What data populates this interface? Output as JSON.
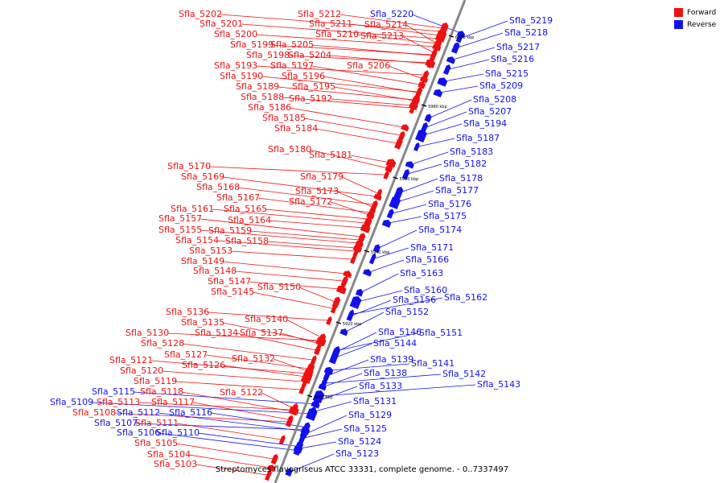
{
  "legend": {
    "forward": {
      "label": "Forward",
      "color": "#ee1111"
    },
    "reverse": {
      "label": "Reverse",
      "color": "#1111ee"
    }
  },
  "caption": "Streptomyces flavogriseus ATCC 33331, complete genome. - 0..7337497",
  "ticks": [
    "6000 kbp",
    "5980 kbp",
    "5960 kbp",
    "5940 kbp",
    "5920 kbp",
    "5900 kbp"
  ],
  "forward_genes": [
    "Sfla_5202",
    "Sfla_5201",
    "Sfla_5200",
    "Sfla_5199",
    "Sfla_5198",
    "Sfla_5193",
    "Sfla_5190",
    "Sfla_5189",
    "Sfla_5188",
    "Sfla_5186",
    "Sfla_5185",
    "Sfla_5184",
    "Sfla_5212",
    "Sfla_5211",
    "Sfla_5210",
    "Sfla_5214",
    "Sfla_5213",
    "Sfla_5205",
    "Sfla_5204",
    "Sfla_5206",
    "Sfla_5197",
    "Sfla_5196",
    "Sfla_5195",
    "Sfla_5192",
    "Sfla_5180",
    "Sfla_5181",
    "Sfla_5179",
    "Sfla_5173",
    "Sfla_5172",
    "Sfla_5170",
    "Sfla_5169",
    "Sfla_5168",
    "Sfla_5167",
    "Sfla_5161",
    "Sfla_5165",
    "Sfla_5157",
    "Sfla_5164",
    "Sfla_5155",
    "Sfla_5159",
    "Sfla_5154",
    "Sfla_5158",
    "Sfla_5153",
    "Sfla_5149",
    "Sfla_5148",
    "Sfla_5147",
    "Sfla_5145",
    "Sfla_5150",
    "Sfla_5136",
    "Sfla_5140",
    "Sfla_5135",
    "Sfla_5134",
    "Sfla_5137",
    "Sfla_5130",
    "Sfla_5128",
    "Sfla_5127",
    "Sfla_5126",
    "Sfla_5132",
    "Sfla_5121",
    "Sfla_5120",
    "Sfla_5119",
    "Sfla_5118",
    "Sfla_5122",
    "Sfla_5113",
    "Sfla_5117",
    "Sfla_5108",
    "Sfla_5111",
    "Sfla_5105",
    "Sfla_5104",
    "Sfla_5103"
  ],
  "reverse_genes": [
    "Sfla_5220",
    "Sfla_5219",
    "Sfla_5218",
    "Sfla_5217",
    "Sfla_5216",
    "Sfla_5215",
    "Sfla_5209",
    "Sfla_5208",
    "Sfla_5207",
    "Sfla_5194",
    "Sfla_5187",
    "Sfla_5183",
    "Sfla_5182",
    "Sfla_5178",
    "Sfla_5177",
    "Sfla_5176",
    "Sfla_5175",
    "Sfla_5174",
    "Sfla_5171",
    "Sfla_5166",
    "Sfla_5163",
    "Sfla_5160",
    "Sfla_5162",
    "Sfla_5156",
    "Sfla_5152",
    "Sfla_5146",
    "Sfla_5151",
    "Sfla_5144",
    "Sfla_5139",
    "Sfla_5141",
    "Sfla_5138",
    "Sfla_5142",
    "Sfla_5143",
    "Sfla_5133",
    "Sfla_5131",
    "Sfla_5129",
    "Sfla_5125",
    "Sfla_5124",
    "Sfla_5123",
    "Sfla_5115",
    "Sfla_5109",
    "Sfla_5112",
    "Sfla_5116",
    "Sfla_5107",
    "Sfla_5106",
    "Sfla_5110"
  ]
}
